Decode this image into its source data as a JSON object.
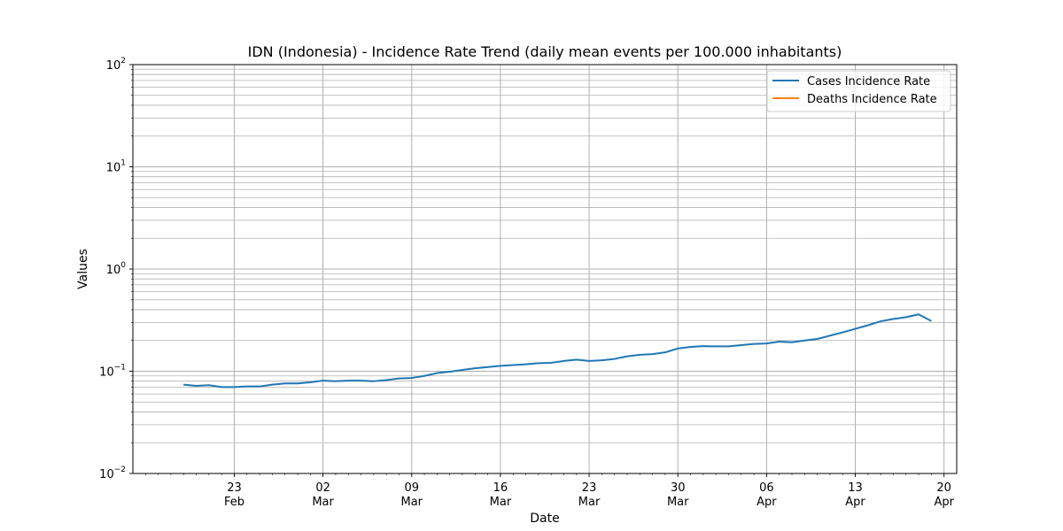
{
  "chart_data": {
    "type": "line",
    "title": "IDN (Indonesia) - Incidence Rate Trend (daily mean events per 100.000 inhabitants)",
    "xlabel": "Date",
    "ylabel": "Values",
    "yscale": "log",
    "ylim": [
      0.01,
      100
    ],
    "xlim": [
      "2021-02-15",
      "2021-04-21"
    ],
    "y_ticks": [
      {
        "value": 0.01,
        "base": "10",
        "exp": "−2"
      },
      {
        "value": 0.1,
        "base": "10",
        "exp": "−1"
      },
      {
        "value": 1,
        "base": "10",
        "exp": "0"
      },
      {
        "value": 10,
        "base": "10",
        "exp": "1"
      },
      {
        "value": 100,
        "base": "10",
        "exp": "2"
      }
    ],
    "x_ticks": [
      {
        "date": "2021-02-23",
        "day": "23",
        "month": "Feb"
      },
      {
        "date": "2021-03-02",
        "day": "02",
        "month": "Mar"
      },
      {
        "date": "2021-03-09",
        "day": "09",
        "month": "Mar"
      },
      {
        "date": "2021-03-16",
        "day": "16",
        "month": "Mar"
      },
      {
        "date": "2021-03-23",
        "day": "23",
        "month": "Mar"
      },
      {
        "date": "2021-03-30",
        "day": "30",
        "month": "Mar"
      },
      {
        "date": "2021-04-06",
        "day": "06",
        "month": "Apr"
      },
      {
        "date": "2021-04-13",
        "day": "13",
        "month": "Apr"
      },
      {
        "date": "2021-04-20",
        "day": "20",
        "month": "Apr"
      }
    ],
    "grid": true,
    "legend_position": "top-right",
    "series": [
      {
        "name": "Cases Incidence Rate",
        "color": "#1f77b4",
        "x": [
          "2021-02-19",
          "2021-02-20",
          "2021-02-21",
          "2021-02-22",
          "2021-02-23",
          "2021-02-24",
          "2021-02-25",
          "2021-02-26",
          "2021-02-27",
          "2021-02-28",
          "2021-03-01",
          "2021-03-02",
          "2021-03-03",
          "2021-03-04",
          "2021-03-05",
          "2021-03-06",
          "2021-03-07",
          "2021-03-08",
          "2021-03-09",
          "2021-03-10",
          "2021-03-11",
          "2021-03-12",
          "2021-03-13",
          "2021-03-14",
          "2021-03-15",
          "2021-03-16",
          "2021-03-17",
          "2021-03-18",
          "2021-03-19",
          "2021-03-20",
          "2021-03-21",
          "2021-03-22",
          "2021-03-23",
          "2021-03-24",
          "2021-03-25",
          "2021-03-26",
          "2021-03-27",
          "2021-03-28",
          "2021-03-29",
          "2021-03-30",
          "2021-03-31",
          "2021-04-01",
          "2021-04-02",
          "2021-04-03",
          "2021-04-04",
          "2021-04-05",
          "2021-04-06",
          "2021-04-07",
          "2021-04-08",
          "2021-04-09",
          "2021-04-10",
          "2021-04-11",
          "2021-04-12",
          "2021-04-13",
          "2021-04-14",
          "2021-04-15",
          "2021-04-16",
          "2021-04-17",
          "2021-04-18",
          "2021-04-19"
        ],
        "values": [
          0.074,
          0.072,
          0.073,
          0.07,
          0.07,
          0.071,
          0.071,
          0.074,
          0.076,
          0.076,
          0.078,
          0.081,
          0.08,
          0.081,
          0.081,
          0.08,
          0.082,
          0.085,
          0.086,
          0.09,
          0.096,
          0.099,
          0.103,
          0.107,
          0.11,
          0.113,
          0.115,
          0.117,
          0.12,
          0.121,
          0.126,
          0.13,
          0.126,
          0.128,
          0.132,
          0.14,
          0.145,
          0.147,
          0.153,
          0.167,
          0.173,
          0.176,
          0.175,
          0.175,
          0.18,
          0.185,
          0.187,
          0.195,
          0.192,
          0.2,
          0.207,
          0.223,
          0.24,
          0.26,
          0.282,
          0.308,
          0.325,
          0.338,
          0.36,
          0.31
        ]
      },
      {
        "name": "Deaths Incidence Rate",
        "color": "#ff7f0e",
        "x": [],
        "values": []
      }
    ]
  }
}
